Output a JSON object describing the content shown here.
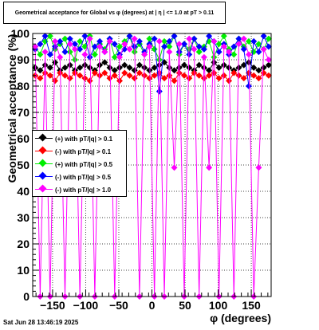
{
  "chart_data": {
    "type": "scatter",
    "title": "Geometrical acceptance for Global vs φ (degrees) at | η | <= 1.0 at pT > 0.11",
    "xlabel": "φ (degrees)",
    "ylabel": "Geometrical acceptance (%)",
    "xlim": [
      -180,
      180
    ],
    "ylim": [
      0,
      100
    ],
    "x_ticks": [
      "−150",
      "−100",
      "−50",
      "0",
      "50",
      "100",
      "150"
    ],
    "x_tick_values": [
      -150,
      -100,
      -50,
      0,
      50,
      100,
      150
    ],
    "y_ticks": [
      "0",
      "10",
      "20",
      "30",
      "40",
      "50",
      "60",
      "70",
      "80",
      "90",
      "100"
    ],
    "grid": true,
    "legend_position": "left",
    "series": [
      {
        "name": "(+) with pT/|q| > 0.1",
        "color": "#000000",
        "values": [
          87,
          86,
          88,
          87,
          89,
          86,
          87,
          88,
          86,
          87,
          88,
          87,
          86,
          88,
          89,
          87,
          86,
          87,
          88,
          87,
          86,
          88,
          87,
          86,
          87,
          88,
          89,
          87,
          86,
          87,
          88,
          87,
          86,
          88,
          87,
          86,
          89,
          87,
          88,
          87,
          86,
          87,
          88,
          89,
          87,
          86,
          87,
          88
        ]
      },
      {
        "name": "(-) with pT/|q| > 0.1",
        "color": "#ff0000",
        "values": [
          84,
          83,
          85,
          84,
          82,
          85,
          84,
          83,
          85,
          84,
          83,
          82,
          85,
          84,
          85,
          83,
          84,
          82,
          85,
          84,
          83,
          85,
          84,
          83,
          84,
          85,
          83,
          84,
          82,
          85,
          84,
          83,
          85,
          84,
          83,
          84,
          85,
          83,
          84,
          82,
          85,
          84,
          83,
          85,
          84,
          83,
          85,
          84
        ]
      },
      {
        "name": "(+) with pT/|q| > 0.5",
        "color": "#00ee00",
        "values": [
          95,
          92,
          97,
          99,
          94,
          96,
          98,
          93,
          90,
          97,
          95,
          99,
          92,
          96,
          94,
          98,
          91,
          95,
          97,
          99,
          93,
          96,
          92,
          98,
          94,
          90,
          97,
          95,
          99,
          92,
          96,
          94,
          98,
          93,
          95,
          97,
          91,
          96,
          99,
          94,
          92,
          98,
          95,
          97,
          93,
          96,
          94,
          98
        ]
      },
      {
        "name": "(-) with pT/|q| > 0.5",
        "color": "#0000ff",
        "values": [
          94,
          96,
          99,
          92,
          95,
          97,
          93,
          98,
          96,
          94,
          99,
          91,
          95,
          97,
          93,
          98,
          96,
          92,
          94,
          99,
          95,
          97,
          93,
          96,
          98,
          78,
          95,
          97,
          99,
          93,
          96,
          92,
          98,
          95,
          94,
          99,
          97,
          93,
          96,
          92,
          95,
          98,
          94,
          80,
          97,
          93,
          99,
          95
        ]
      },
      {
        "name": "(-) with pT/|q| > 1.0",
        "color": "#ff00ff",
        "values": [
          95,
          0,
          93,
          0,
          97,
          91,
          0,
          96,
          94,
          0,
          92,
          98,
          0,
          95,
          93,
          97,
          0,
          91,
          96,
          94,
          98,
          0,
          92,
          95,
          0,
          97,
          0,
          93,
          49,
          96,
          0,
          98,
          94,
          0,
          91,
          49,
          97,
          0,
          95,
          93,
          0,
          96,
          98,
          92,
          0,
          49,
          94,
          90
        ]
      }
    ]
  },
  "datestamp": "Sat Jun 28 13:46:19 2025"
}
